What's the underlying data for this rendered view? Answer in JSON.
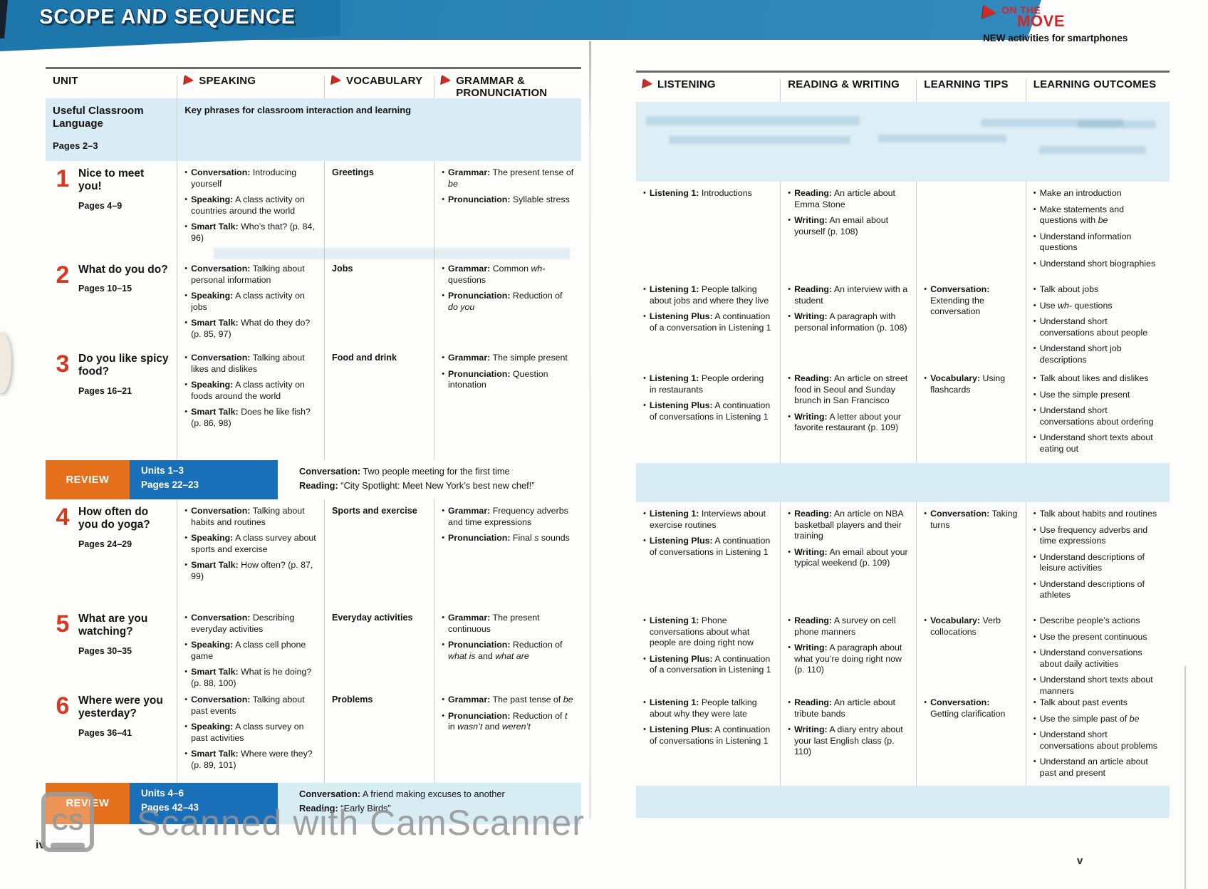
{
  "banner": {
    "title": "SCOPE AND SEQUENCE"
  },
  "logo": {
    "line1": "ON THE",
    "line2": "MOVE",
    "subtitle": "NEW activities for smartphones"
  },
  "icons": {
    "header_arrow": "red-play-triangle",
    "logo_arrow": "red-play-triangle"
  },
  "pages": {
    "left_number": "iv",
    "right_number": "v"
  },
  "watermark": {
    "text": "Scanned with CamScanner",
    "logo": "CS"
  },
  "left_headers": [
    {
      "text": "UNIT",
      "arrow": false
    },
    {
      "text": "SPEAKING",
      "arrow": true
    },
    {
      "text": "VOCABULARY",
      "arrow": true
    },
    {
      "text": "GRAMMAR &\nPRONUNCIATION",
      "arrow": true
    }
  ],
  "right_headers": [
    {
      "text": "LISTENING",
      "arrow": true
    },
    {
      "text": "READING & WRITING",
      "arrow": false
    },
    {
      "text": "LEARNING TIPS",
      "arrow": false
    },
    {
      "text": "LEARNING OUTCOMES",
      "arrow": false
    }
  ],
  "classroom_row": {
    "title": "Useful Classroom Language",
    "pages": "Pages 2–3",
    "text": "Key phrases for classroom interaction and learning"
  },
  "units": [
    {
      "number": "1",
      "title": "Nice to meet you!",
      "pages": "Pages 4–9",
      "speaking": [
        {
          "label": "Conversation",
          "text": "Introducing yourself"
        },
        {
          "label": "Speaking",
          "text": "A class activity on countries around the world"
        },
        {
          "label": "Smart Talk",
          "text": "Who’s that? (p. 84, 96)"
        }
      ],
      "vocabulary": "Greetings",
      "grammar": [
        {
          "label": "Grammar",
          "text": "The present tense of *be*"
        },
        {
          "label": "Pronunciation",
          "text": "Syllable stress"
        }
      ],
      "listening": [
        {
          "label": "Listening 1",
          "text": "Introductions"
        }
      ],
      "reading_writing": [
        {
          "label": "Reading",
          "text": "An article about Emma Stone"
        },
        {
          "label": "Writing",
          "text": "An email about yourself (p. 108)"
        }
      ],
      "learning_tips": [],
      "outcomes": [
        "Make an introduction",
        "Make statements and questions with *be*",
        "Understand information questions",
        "Understand short biographies"
      ]
    },
    {
      "number": "2",
      "title": "What do you do?",
      "pages": "Pages 10–15",
      "speaking": [
        {
          "label": "Conversation",
          "text": "Talking about personal information"
        },
        {
          "label": "Speaking",
          "text": "A class activity on jobs"
        },
        {
          "label": "Smart Talk",
          "text": "What do they do? (p. 85, 97)"
        }
      ],
      "vocabulary": "Jobs",
      "grammar": [
        {
          "label": "Grammar",
          "text": "Common *wh-* questions"
        },
        {
          "label": "Pronunciation",
          "text": "Reduction of *do you*"
        }
      ],
      "listening": [
        {
          "label": "Listening 1",
          "text": "People talking about jobs and where they live"
        },
        {
          "label": "Listening Plus",
          "text": "A continuation of a conversation in Listening 1"
        }
      ],
      "reading_writing": [
        {
          "label": "Reading",
          "text": "An interview with a student"
        },
        {
          "label": "Writing",
          "text": "A paragraph with personal information (p. 108)"
        }
      ],
      "learning_tips": [
        {
          "label": "Conversation",
          "text": "Extending the conversation"
        }
      ],
      "outcomes": [
        "Talk about jobs",
        "Use *wh-* questions",
        "Understand short conversations about people",
        "Understand short job descriptions"
      ]
    },
    {
      "number": "3",
      "title": "Do you like spicy food?",
      "pages": "Pages 16–21",
      "speaking": [
        {
          "label": "Conversation",
          "text": "Talking about likes and dislikes"
        },
        {
          "label": "Speaking",
          "text": "A class activity on foods around the world"
        },
        {
          "label": "Smart Talk",
          "text": "Does he like fish? (p. 86, 98)"
        }
      ],
      "vocabulary": "Food and drink",
      "grammar": [
        {
          "label": "Grammar",
          "text": "The simple present"
        },
        {
          "label": "Pronunciation",
          "text": "Question intonation"
        }
      ],
      "listening": [
        {
          "label": "Listening 1",
          "text": "People ordering in restaurants"
        },
        {
          "label": "Listening Plus",
          "text": "A continuation of conversations in Listening 1"
        }
      ],
      "reading_writing": [
        {
          "label": "Reading",
          "text": "An article on street food in Seoul and Sunday brunch in San Francisco"
        },
        {
          "label": "Writing",
          "text": "A letter about your favorite restaurant (p. 109)"
        }
      ],
      "learning_tips": [
        {
          "label": "Vocabulary",
          "text": "Using flashcards"
        }
      ],
      "outcomes": [
        "Talk about likes and dislikes",
        "Use the simple present",
        "Understand short conversations about ordering",
        "Understand short texts about eating out"
      ]
    },
    {
      "number": "4",
      "title": "How often do you do yoga?",
      "pages": "Pages 24–29",
      "speaking": [
        {
          "label": "Conversation",
          "text": "Talking about habits and routines"
        },
        {
          "label": "Speaking",
          "text": "A class survey about sports and exercise"
        },
        {
          "label": "Smart Talk",
          "text": "How often? (p. 87, 99)"
        }
      ],
      "vocabulary": "Sports and exercise",
      "grammar": [
        {
          "label": "Grammar",
          "text": "Frequency adverbs and time expressions"
        },
        {
          "label": "Pronunciation",
          "text": "Final *s* sounds"
        }
      ],
      "listening": [
        {
          "label": "Listening 1",
          "text": "Interviews about exercise routines"
        },
        {
          "label": "Listening Plus",
          "text": "A continuation of conversations in Listening 1"
        }
      ],
      "reading_writing": [
        {
          "label": "Reading",
          "text": "An article on NBA basketball players and their training"
        },
        {
          "label": "Writing",
          "text": "An email about your typical weekend (p. 109)"
        }
      ],
      "learning_tips": [
        {
          "label": "Conversation",
          "text": "Taking turns"
        }
      ],
      "outcomes": [
        "Talk about habits and routines",
        "Use frequency adverbs and time expressions",
        "Understand descriptions of leisure activities",
        "Understand descriptions of athletes"
      ]
    },
    {
      "number": "5",
      "title": "What are you watching?",
      "pages": "Pages 30–35",
      "speaking": [
        {
          "label": "Conversation",
          "text": "Describing everyday activities"
        },
        {
          "label": "Speaking",
          "text": "A class cell phone game"
        },
        {
          "label": "Smart Talk",
          "text": "What is he doing? (p. 88, 100)"
        }
      ],
      "vocabulary": "Everyday activities",
      "grammar": [
        {
          "label": "Grammar",
          "text": "The present continuous"
        },
        {
          "label": "Pronunciation",
          "text": "Reduction of *what is* and *what are*"
        }
      ],
      "listening": [
        {
          "label": "Listening 1",
          "text": "Phone conversations about what people are doing right now"
        },
        {
          "label": "Listening Plus",
          "text": "A continuation of a conversation in Listening 1"
        }
      ],
      "reading_writing": [
        {
          "label": "Reading",
          "text": "A survey on cell phone manners"
        },
        {
          "label": "Writing",
          "text": "A paragraph about what you’re doing right now (p. 110)"
        }
      ],
      "learning_tips": [
        {
          "label": "Vocabulary",
          "text": "Verb collocations"
        }
      ],
      "outcomes": [
        "Describe people’s actions",
        "Use the present continuous",
        "Understand conversations about daily activities",
        "Understand short texts about manners"
      ]
    },
    {
      "number": "6",
      "title": "Where were you yesterday?",
      "pages": "Pages 36–41",
      "speaking": [
        {
          "label": "Conversation",
          "text": "Talking about past events"
        },
        {
          "label": "Speaking",
          "text": "A class survey on past activities"
        },
        {
          "label": "Smart Talk",
          "text": "Where were they? (p. 89, 101)"
        }
      ],
      "vocabulary": "Problems",
      "grammar": [
        {
          "label": "Grammar",
          "text": "The past tense of *be*"
        },
        {
          "label": "Pronunciation",
          "text": "Reduction of *t* in *wasn’t* and *weren’t*"
        }
      ],
      "listening": [
        {
          "label": "Listening 1",
          "text": "People talking about why they were late"
        },
        {
          "label": "Listening Plus",
          "text": "A continuation of conversations in Listening 1"
        }
      ],
      "reading_writing": [
        {
          "label": "Reading",
          "text": "An article about tribute bands"
        },
        {
          "label": "Writing",
          "text": "A diary entry about your last English class (p. 110)"
        }
      ],
      "learning_tips": [
        {
          "label": "Conversation",
          "text": "Getting clarification"
        }
      ],
      "outcomes": [
        "Talk about past events",
        "Use the simple past of *be*",
        "Understand short conversations about problems",
        "Understand an article about past and present"
      ]
    }
  ],
  "reviews": [
    {
      "badge": "REVIEW",
      "units": "Units 1–3",
      "pages": "Pages 22–23",
      "lines": [
        {
          "label": "Conversation",
          "text": "Two people meeting for the first time"
        },
        {
          "label": "Reading",
          "text": "“City Spotlight: Meet New York’s best new chef!”"
        }
      ]
    },
    {
      "badge": "REVIEW",
      "units": "Units 4–6",
      "pages": "Pages 42–43",
      "lines": [
        {
          "label": "Conversation",
          "text": "A friend making excuses to another"
        },
        {
          "label": "Reading",
          "text": "“Early Birds”"
        }
      ]
    }
  ],
  "colors": {
    "banner_blue": "#1e79ad",
    "review_orange": "#e4701c",
    "review_blue": "#1a70b8",
    "unit_number_red": "#d6391e",
    "arrow_red": "#c92f24",
    "tint_blue": "#d9ecf5"
  }
}
